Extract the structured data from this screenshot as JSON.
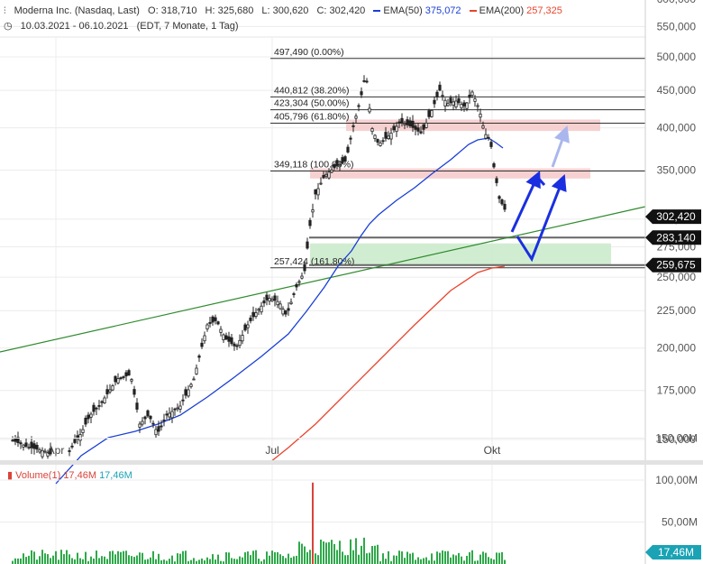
{
  "header": {
    "instrument": "Moderna Inc. (Nasdaq, Last)",
    "open": "O: 318,710",
    "high": "H: 325,680",
    "low": "L: 300,620",
    "close": "C: 302,420",
    "ema50_label": "EMA(50)",
    "ema50_value": "375,072",
    "ema200_label": "EMA(200)",
    "ema200_value": "257,325",
    "range": "10.03.2021 - 06.10.2021",
    "range_note": "(EDT, 7 Monate, 1 Tag)"
  },
  "colors": {
    "candle": "#222222",
    "ema50": "#1a3fd6",
    "ema200": "#e8442c",
    "trendline": "#2e8b2e",
    "arrow": "#1a2fe0",
    "arrow_light": "#aab7ee",
    "resistance_zone": "#f6cccc",
    "support_zone": "#cfeccf",
    "volume": "#2fa84a",
    "volume_spike": "#d9433a",
    "price_badge": "#111111",
    "volume_badge": "#1aa3b5"
  },
  "chart_data": {
    "type": "candlestick",
    "y_ticks": [
      "150,000",
      "175,000",
      "200,000",
      "225,000",
      "250,000",
      "275,000",
      "300,000",
      "350,000",
      "400,000",
      "450,000",
      "500,000",
      "550,000",
      "600,000"
    ],
    "x_ticks": [
      "Apr",
      "Jul",
      "Okt"
    ],
    "fib_levels": [
      {
        "value": 497.49,
        "label": "497,490 (0.00%)"
      },
      {
        "value": 440.812,
        "label": "440,812 (38.20%)"
      },
      {
        "value": 423.304,
        "label": "423,304 (50.00%)"
      },
      {
        "value": 405.796,
        "label": "405,796 (61.80%)"
      },
      {
        "value": 349.118,
        "label": "349,118 (100.00%)"
      },
      {
        "value": 257.424,
        "label": "257,424 (161.80%)"
      }
    ],
    "price_badges": [
      {
        "label": "302,420",
        "value": 302.42
      },
      {
        "label": "283,140",
        "value": 283.14
      },
      {
        "label": "259,675",
        "value": 259.675
      }
    ],
    "volume_title": "Volume(1)",
    "volume_value_red": "17,46M",
    "volume_value_blue": "17,46M",
    "volume_ticks": [
      "150,00M",
      "100,00M",
      "50,00M"
    ],
    "volume_badge": "17,46M"
  }
}
